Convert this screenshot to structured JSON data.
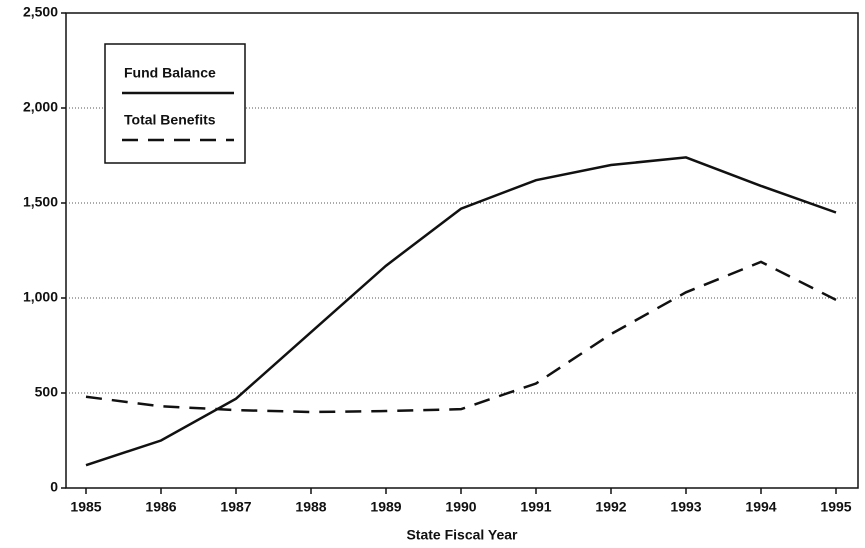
{
  "chart_data": {
    "type": "line",
    "xlabel": "State Fiscal Year",
    "categories": [
      "1985",
      "1986",
      "1987",
      "1988",
      "1989",
      "1990",
      "1991",
      "1992",
      "1993",
      "1994",
      "1995"
    ],
    "series": [
      {
        "name": "Fund Balance",
        "color": "#111111",
        "style": "solid",
        "values": [
          120,
          250,
          470,
          820,
          1170,
          1470,
          1620,
          1700,
          1740,
          1590,
          1450
        ]
      },
      {
        "name": "Total Benefits",
        "color": "#111111",
        "style": "dashed",
        "values": [
          480,
          430,
          410,
          400,
          405,
          415,
          550,
          810,
          1030,
          1190,
          990
        ]
      }
    ],
    "ylim": [
      0,
      2500
    ],
    "yticks": [
      0,
      500,
      {
        "value": 1000,
        "label": "1,000"
      },
      {
        "value": 1500,
        "label": "1,500"
      },
      {
        "value": 2000,
        "label": "2,000"
      },
      {
        "value": 2500,
        "label": "2,500"
      }
    ],
    "grid": true,
    "legend": "upper left"
  }
}
